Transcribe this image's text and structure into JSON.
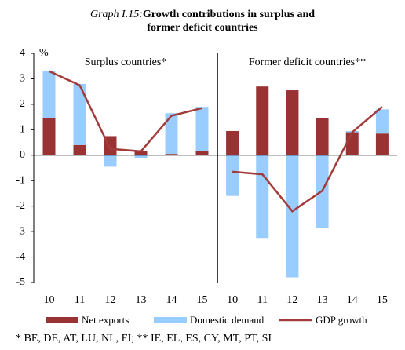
{
  "title_number": "Graph I.15:",
  "title": "Growth contributions in surplus and former deficit countries",
  "footnote": "* BE, DE, AT, LU, NL, FI; ** IE, EL, ES, CY, MT, PT, SI",
  "chart_data": [
    {
      "type": "bar",
      "title": "Surplus countries*",
      "y_label": "%",
      "categories": [
        "10",
        "11",
        "12",
        "13",
        "14",
        "15"
      ],
      "series": [
        {
          "name": "Net exports",
          "color": "#993333",
          "values": [
            1.45,
            0.4,
            0.75,
            0.15,
            0.05,
            0.15
          ]
        },
        {
          "name": "Domestic demand",
          "color": "#99ccff",
          "values": [
            1.85,
            2.4,
            -0.45,
            -0.1,
            1.6,
            1.75
          ]
        },
        {
          "name": "GDP growth",
          "type": "line",
          "color": "#a33b3b",
          "values": [
            3.3,
            2.75,
            0.25,
            0.15,
            1.55,
            1.85
          ]
        }
      ],
      "ylim": [
        -5,
        4
      ],
      "yticks": [
        -5,
        -4,
        -3,
        -2,
        -1,
        0,
        1,
        2,
        3,
        4
      ]
    },
    {
      "type": "bar",
      "title": "Former deficit countries**",
      "categories": [
        "10",
        "11",
        "12",
        "13",
        "14",
        "15"
      ],
      "series": [
        {
          "color": "#993333",
          "values": [
            0.95,
            2.7,
            2.55,
            1.45,
            0.9,
            0.85
          ]
        },
        {
          "color": "#99ccff",
          "values": [
            -1.6,
            -3.25,
            -4.8,
            -2.85,
            0.05,
            0.95
          ]
        },
        {
          "type": "line",
          "color": "#a33b3b",
          "values": [
            -0.65,
            -0.75,
            -2.2,
            -1.4,
            0.9,
            1.9
          ]
        }
      ],
      "ylim": [
        -5,
        4
      ]
    }
  ]
}
